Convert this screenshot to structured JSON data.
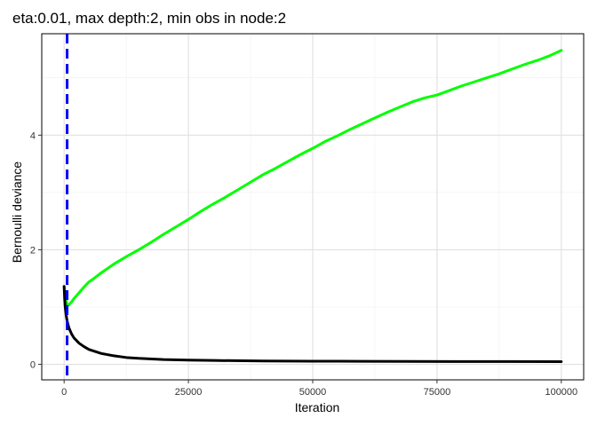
{
  "chart_data": {
    "type": "line",
    "title": "eta:0.01, max depth:2, min obs in node:2",
    "xlabel": "Iteration",
    "ylabel": "Bernoulli deviance",
    "xlim": [
      -4500,
      104500
    ],
    "ylim": [
      -0.27,
      5.77
    ],
    "x_ticks": [
      0,
      25000,
      50000,
      75000,
      100000
    ],
    "x_tick_labels": [
      "0",
      "25000",
      "50000",
      "75000",
      "100000"
    ],
    "y_ticks": [
      0,
      2,
      4
    ],
    "y_tick_labels": [
      "0",
      "2",
      "4"
    ],
    "grid": true,
    "legend": "none",
    "vline": {
      "x": 600,
      "color": "#0000ff",
      "style": "dashed"
    },
    "series": [
      {
        "color": "#00ff00",
        "x": [
          0,
          200,
          400,
          600,
          800,
          1000,
          1500,
          2000,
          3000,
          4000,
          5000,
          6000,
          7500,
          10000,
          12500,
          15000,
          17500,
          20000,
          22500,
          25000,
          27500,
          30000,
          32500,
          35000,
          37500,
          40000,
          42500,
          45000,
          47500,
          50000,
          52500,
          55000,
          57500,
          60000,
          62500,
          65000,
          67500,
          70000,
          72500,
          75000,
          77500,
          80000,
          82500,
          85000,
          87500,
          90000,
          92500,
          95000,
          97500,
          100000
        ],
        "values": [
          1.36,
          1.2,
          1.1,
          1.05,
          1.03,
          1.04,
          1.09,
          1.15,
          1.25,
          1.35,
          1.44,
          1.5,
          1.6,
          1.75,
          1.88,
          2.0,
          2.13,
          2.27,
          2.4,
          2.53,
          2.67,
          2.8,
          2.92,
          3.05,
          3.18,
          3.31,
          3.42,
          3.54,
          3.66,
          3.77,
          3.89,
          3.99,
          4.1,
          4.2,
          4.3,
          4.4,
          4.49,
          4.58,
          4.65,
          4.7,
          4.78,
          4.86,
          4.93,
          5.0,
          5.07,
          5.15,
          5.23,
          5.3,
          5.38,
          5.48
        ]
      },
      {
        "color": "#000000",
        "x": [
          0,
          100,
          200,
          400,
          600,
          800,
          1000,
          1500,
          2000,
          3000,
          4000,
          5000,
          7500,
          10000,
          12500,
          15000,
          20000,
          25000,
          30000,
          40000,
          50000,
          60000,
          70000,
          80000,
          90000,
          100000
        ],
        "values": [
          1.36,
          1.15,
          1.02,
          0.86,
          0.76,
          0.69,
          0.63,
          0.53,
          0.46,
          0.37,
          0.31,
          0.26,
          0.19,
          0.15,
          0.12,
          0.105,
          0.085,
          0.075,
          0.068,
          0.06,
          0.056,
          0.053,
          0.051,
          0.05,
          0.049,
          0.048
        ]
      }
    ]
  }
}
